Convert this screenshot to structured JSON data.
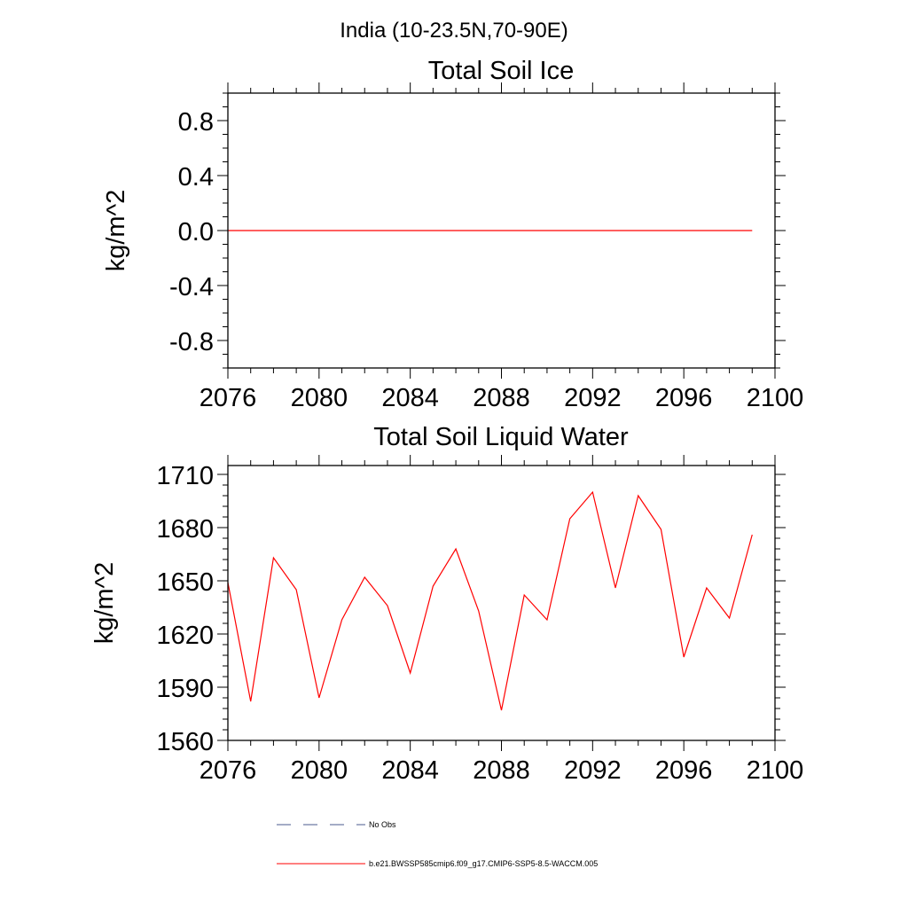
{
  "figure": {
    "region_title": "India (10-23.5N,70-90E)"
  },
  "chart_data": [
    {
      "type": "line",
      "title": "Total Soil Ice",
      "xlabel": "",
      "ylabel": "kg/m^2",
      "xlim": [
        2076,
        2100
      ],
      "ylim": [
        -1.0,
        1.0
      ],
      "x_ticks": [
        2076,
        2080,
        2084,
        2088,
        2092,
        2096,
        2100
      ],
      "x_tick_labels": [
        "2076",
        "2080",
        "2084",
        "2088",
        "2092",
        "2096",
        "2100"
      ],
      "y_ticks": [
        0.8,
        0.4,
        0.0,
        -0.4,
        -0.8
      ],
      "y_tick_labels": [
        "0.8",
        "0.4",
        "0.0",
        "-0.4",
        "-0.8"
      ],
      "x_minor_step": 1,
      "y_minor_step": 0.1,
      "series": [
        {
          "name": "b.e21.BWSSP585cmip6.f09_g17.CMIP6-SSP5-8.5-WACCM.005",
          "color": "#ff0000",
          "x": [
            2076,
            2077,
            2078,
            2079,
            2080,
            2081,
            2082,
            2083,
            2084,
            2085,
            2086,
            2087,
            2088,
            2089,
            2090,
            2091,
            2092,
            2093,
            2094,
            2095,
            2096,
            2097,
            2098,
            2099
          ],
          "values": [
            0,
            0,
            0,
            0,
            0,
            0,
            0,
            0,
            0,
            0,
            0,
            0,
            0,
            0,
            0,
            0,
            0,
            0,
            0,
            0,
            0,
            0,
            0,
            0
          ]
        }
      ]
    },
    {
      "type": "line",
      "title": "Total Soil Liquid Water",
      "xlabel": "",
      "ylabel": "kg/m^2",
      "xlim": [
        2076,
        2100
      ],
      "ylim": [
        1560,
        1715
      ],
      "x_ticks": [
        2076,
        2080,
        2084,
        2088,
        2092,
        2096,
        2100
      ],
      "x_tick_labels": [
        "2076",
        "2080",
        "2084",
        "2088",
        "2092",
        "2096",
        "2100"
      ],
      "y_ticks": [
        1710,
        1680,
        1650,
        1620,
        1590,
        1560
      ],
      "y_tick_labels": [
        "1710",
        "1680",
        "1650",
        "1620",
        "1590",
        "1560"
      ],
      "x_minor_step": 1,
      "y_minor_step": 6,
      "series": [
        {
          "name": "b.e21.BWSSP585cmip6.f09_g17.CMIP6-SSP5-8.5-WACCM.005",
          "color": "#ff0000",
          "x": [
            2076,
            2077,
            2078,
            2079,
            2080,
            2081,
            2082,
            2083,
            2084,
            2085,
            2086,
            2087,
            2088,
            2089,
            2090,
            2091,
            2092,
            2093,
            2094,
            2095,
            2096,
            2097,
            2098,
            2099
          ],
          "values": [
            1649,
            1582,
            1663,
            1645,
            1584,
            1628,
            1652,
            1636,
            1598,
            1647,
            1668,
            1633,
            1577,
            1642,
            1628,
            1685,
            1700,
            1646,
            1698,
            1679,
            1607,
            1646,
            1629,
            1676
          ]
        }
      ]
    }
  ],
  "legend": {
    "items": [
      {
        "label": "No Obs",
        "style": "dashed",
        "color": "#4a5a8c"
      },
      {
        "label": "b.e21.BWSSP585cmip6.f09_g17.CMIP6-SSP5-8.5-WACCM.005",
        "style": "solid",
        "color": "#ff0000"
      }
    ]
  }
}
